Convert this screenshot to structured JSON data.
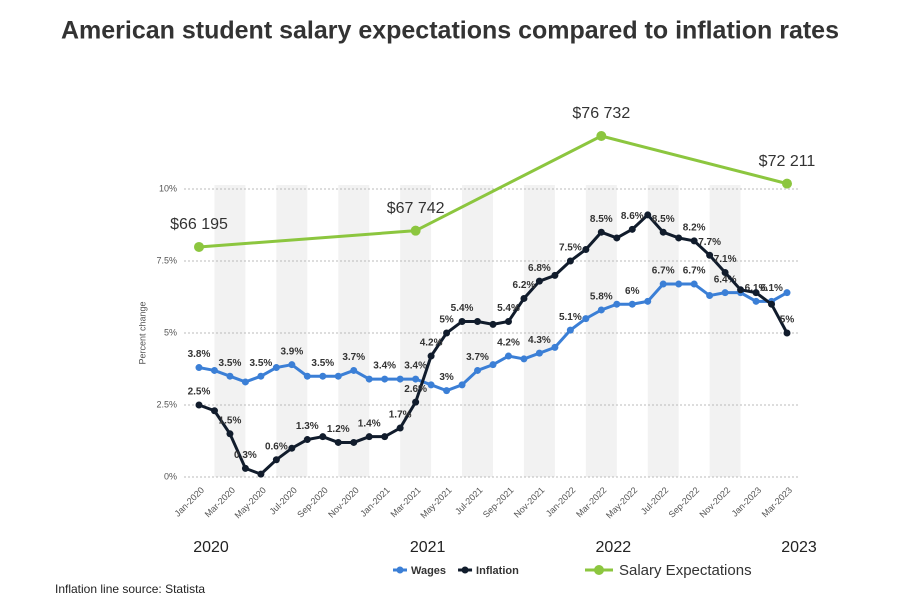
{
  "chart_data": {
    "type": "line",
    "title": "American student salary expectations compared to inflation rates",
    "y_label": "Percent change",
    "footnote": "Inflation line source: Statista",
    "categories": [
      "Jan-2020",
      null,
      "Mar-2020",
      null,
      "May-2020",
      null,
      "Jul-2020",
      null,
      "Sep-2020",
      null,
      "Nov-2020",
      null,
      "Jan-2021",
      null,
      "Mar-2021",
      null,
      "May-2021",
      null,
      "Jul-2021",
      null,
      "Sep-2021",
      null,
      "Nov-2021",
      null,
      "Jan-2022",
      null,
      "Mar-2022",
      null,
      "May-2022",
      null,
      "Jul-2022",
      null,
      "Sep-2022",
      null,
      "Nov-2022",
      null,
      "Jan-2023",
      null,
      "Mar-2023"
    ],
    "x_group_labels": [
      "2020",
      "2021",
      "2022",
      "2023"
    ],
    "ylim": [
      0,
      10
    ],
    "yticks": [
      {
        "value": 0,
        "label": "0%"
      },
      {
        "value": 2.5,
        "label": "2.5%"
      },
      {
        "value": 5,
        "label": "5%"
      },
      {
        "value": 7.5,
        "label": "7.5%"
      },
      {
        "value": 10,
        "label": "10%"
      }
    ],
    "y2lim": [
      44350,
      71700
    ],
    "grid": true,
    "series": [
      {
        "name": "Wages",
        "color": "#3b7fd6",
        "values": [
          3.8,
          3.7,
          3.5,
          3.3,
          3.5,
          3.8,
          3.9,
          3.5,
          3.5,
          3.5,
          3.7,
          3.4,
          3.4,
          3.4,
          3.4,
          3.2,
          3.0,
          3.2,
          3.7,
          3.9,
          4.2,
          4.1,
          4.3,
          4.5,
          5.1,
          5.5,
          5.8,
          6.0,
          6.0,
          6.1,
          6.7,
          6.7,
          6.7,
          6.3,
          6.4,
          6.4,
          6.1,
          6.1,
          6.4
        ],
        "value_labels": [
          "3.8%",
          null,
          "3.5%",
          null,
          "3.5%",
          null,
          "3.9%",
          null,
          "3.5%",
          null,
          "3.7%",
          null,
          "3.4%",
          null,
          "3.4%",
          null,
          "3%",
          null,
          "3.7%",
          null,
          "4.2%",
          null,
          "4.3%",
          null,
          "5.1%",
          null,
          "5.8%",
          null,
          "6%",
          null,
          "6.7%",
          null,
          "6.7%",
          null,
          "6.4%",
          null,
          "6.1%",
          "6.1%",
          null
        ]
      },
      {
        "name": "Inflation",
        "color": "#111c2c",
        "values": [
          2.5,
          2.3,
          1.5,
          0.3,
          0.1,
          0.6,
          1.0,
          1.3,
          1.4,
          1.2,
          1.2,
          1.4,
          1.4,
          1.7,
          2.6,
          4.2,
          5.0,
          5.4,
          5.4,
          5.3,
          5.4,
          6.2,
          6.8,
          7.0,
          7.5,
          7.9,
          8.5,
          8.3,
          8.6,
          9.1,
          8.5,
          8.3,
          8.2,
          7.7,
          7.1,
          6.5,
          6.4,
          6.0,
          5.0
        ],
        "value_labels": [
          "2.5%",
          null,
          "1.5%",
          "0.3%",
          null,
          "0.6%",
          null,
          "1.3%",
          null,
          "1.2%",
          null,
          "1.4%",
          null,
          "1.7%",
          "2.6%",
          "4.2%",
          "5%",
          "5.4%",
          null,
          null,
          "5.4%",
          "6.2%",
          "6.8%",
          null,
          "7.5%",
          null,
          "8.5%",
          null,
          "8.6%",
          null,
          "8.5%",
          null,
          "8.2%",
          "7.7%",
          "7.1%",
          null,
          null,
          null,
          "5%"
        ]
      },
      {
        "name": "Salary Expectations",
        "color": "#8cc63f",
        "axis": "y2",
        "x": [
          "Jan-2020",
          "Mar-2021",
          "Mar-2022",
          "Mar-2023"
        ],
        "values": [
          66195,
          67742,
          76732,
          72211
        ],
        "value_labels": [
          "$66 195",
          "$67 742",
          "$76 732",
          "$72 211"
        ]
      }
    ]
  }
}
